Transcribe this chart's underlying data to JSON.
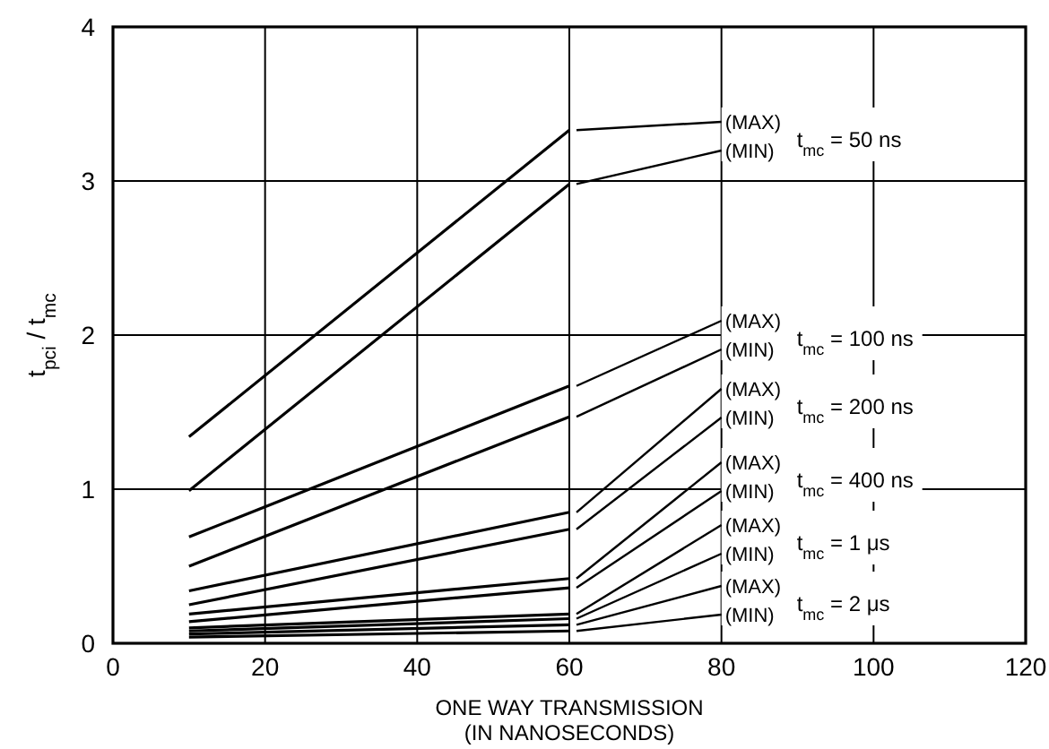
{
  "chart_data": {
    "type": "line",
    "xlabel": "ONE WAY TRANSMISSION\n(IN NANOSECONDS)",
    "ylabel": "t$_{pci}$ / t$_{mc}$",
    "x": [
      10,
      60
    ],
    "xlim": [
      0,
      120
    ],
    "xticks": [
      0,
      20,
      40,
      60,
      80,
      100,
      120
    ],
    "ylim": [
      0,
      4
    ],
    "yticks": [
      0,
      1,
      2,
      3,
      4
    ],
    "grid": true,
    "marker": "none",
    "line_style": "solid",
    "series": [
      {
        "name": "(MAX)",
        "color": "#000000",
        "values": [
          1.34,
          3.33
        ]
      },
      {
        "name": "(MIN)",
        "color": "#000000",
        "values": [
          0.99,
          2.98
        ]
      },
      {
        "name": "(MAX)",
        "color": "#000000",
        "values": [
          0.69,
          1.67
        ]
      },
      {
        "name": "(MIN)",
        "color": "#000000",
        "values": [
          0.5,
          1.47
        ]
      },
      {
        "name": "(MAX)",
        "color": "#000000",
        "values": [
          0.34,
          0.85
        ]
      },
      {
        "name": "(MIN)",
        "color": "#000000",
        "values": [
          0.25,
          0.74
        ]
      },
      {
        "name": "(MAX)",
        "color": "#000000",
        "values": [
          0.19,
          0.42
        ]
      },
      {
        "name": "(MIN)",
        "color": "#000000",
        "values": [
          0.14,
          0.36
        ]
      },
      {
        "name": "(MAX)",
        "color": "#000000",
        "values": [
          0.1,
          0.19
        ]
      },
      {
        "name": "(MIN)",
        "color": "#000000",
        "values": [
          0.08,
          0.16
        ]
      },
      {
        "name": "(MAX)",
        "color": "#000000",
        "values": [
          0.06,
          0.12
        ]
      },
      {
        "name": "(MIN)",
        "color": "#000000",
        "values": [
          0.04,
          0.08
        ]
      }
    ],
    "annotations": [
      "t$_{mc}$ = 50 ns",
      "t$_{mc}$ = 100 ns",
      "t$_{mc}$ = 200 ns",
      "t$_{mc}$ = 400 ns",
      "t$_{mc}$ = 1 μs",
      "t$_{mc}$ = 2 μs"
    ]
  }
}
